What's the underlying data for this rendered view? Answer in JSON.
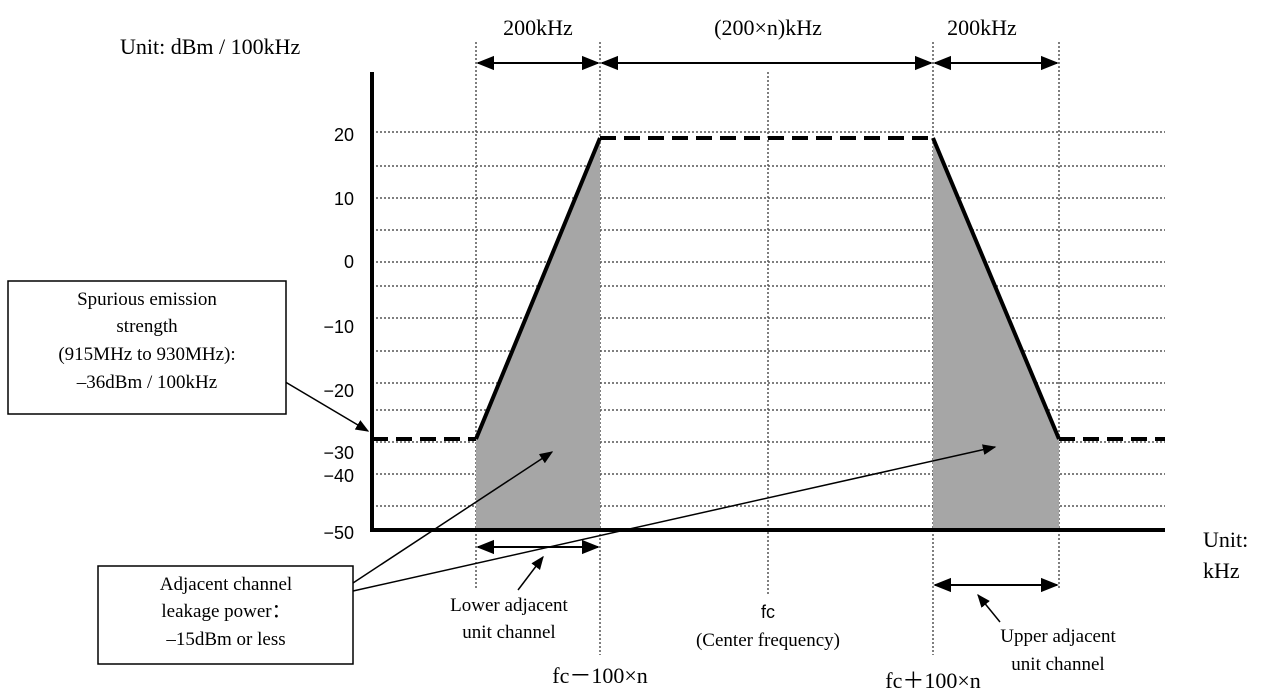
{
  "unit_y": "Unit: dBm / 100kHz",
  "unit_x_line1": "Unit:",
  "unit_x_line2": "kHz",
  "spans": {
    "left": "200kHz",
    "middle": "(200×n)kHz",
    "right": "200kHz"
  },
  "y_ticks": [
    "20",
    "10",
    "0",
    "−10",
    "−20",
    "−30",
    "−40",
    "−50"
  ],
  "spurious_box": {
    "lines": [
      "Spurious emission",
      "strength",
      "(915MHz to 930MHz):",
      "–36dBm / 100kHz"
    ]
  },
  "adjacent_box": {
    "lines": [
      "Adjacent channel",
      "leakage power：",
      "–15dBm or less"
    ]
  },
  "lower_channel": {
    "lines": [
      "Lower adjacent",
      "unit channel"
    ]
  },
  "upper_channel": {
    "lines": [
      "Upper adjacent",
      "unit channel"
    ]
  },
  "center": {
    "label": "fc",
    "sub": "(Center frequency)"
  },
  "freq_low": "fc－100×n",
  "freq_high": "fc＋100×n",
  "colors": {
    "fill": "#a6a6a6",
    "line": "#000000",
    "grid": "#555555"
  }
}
